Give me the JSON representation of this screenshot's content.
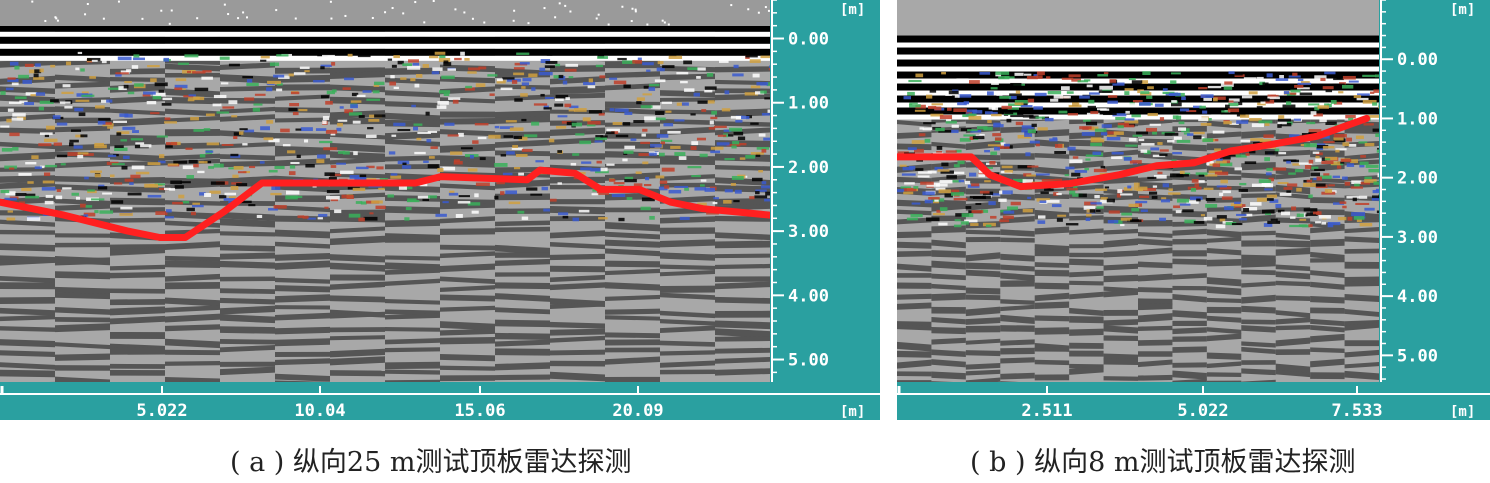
{
  "chart_data": [
    {
      "type": "line",
      "caption": "( a ) 纵向25 m测试顶板雷达探测",
      "depth_unit": "[m]",
      "distance_unit": "[m]",
      "depth_ticks": [
        "0.00",
        "1.00",
        "2.00",
        "3.00",
        "4.00",
        "5.00"
      ],
      "distance_ticks": [
        "5.022",
        "10.04",
        "15.06",
        "20.09"
      ],
      "depth_range": [
        -0.6,
        5.35
      ],
      "distance_range": [
        0,
        24.1
      ],
      "colors": {
        "background": "#2aa0a0",
        "interface_line": "#ff2020",
        "gray_light": "#a8a8a8",
        "gray_dark": "#555555"
      },
      "series": [
        {
          "x": [
            0,
            2.0,
            4.0,
            5.0,
            5.8,
            7.0,
            8.2,
            9.5,
            13.0,
            13.8,
            16.5,
            16.9,
            18.0,
            18.8,
            20.0,
            21.0,
            22.0,
            24.1
          ],
          "y": [
            2.55,
            2.75,
            3.0,
            3.1,
            3.1,
            2.7,
            2.25,
            2.25,
            2.25,
            2.15,
            2.2,
            2.05,
            2.1,
            2.35,
            2.35,
            2.55,
            2.65,
            2.75
          ]
        }
      ]
    },
    {
      "type": "line",
      "caption": "( b ) 纵向8 m测试顶板雷达探测",
      "depth_unit": "[m]",
      "distance_unit": "[m]",
      "depth_ticks": [
        "0.00",
        "1.00",
        "2.00",
        "3.00",
        "4.00",
        "5.00"
      ],
      "distance_ticks": [
        "2.511",
        "5.022",
        "7.533"
      ],
      "depth_range": [
        -1.0,
        5.45
      ],
      "distance_range": [
        0,
        7.8
      ],
      "colors": {
        "background": "#2aa0a0",
        "interface_line": "#ff2020",
        "gray_light": "#a8a8a8",
        "gray_dark": "#555555"
      },
      "series": [
        {
          "x": [
            0,
            1.2,
            1.5,
            2.0,
            2.8,
            3.6,
            4.2,
            4.8,
            5.4,
            6.0,
            6.8,
            7.6
          ],
          "y": [
            1.65,
            1.65,
            1.95,
            2.15,
            2.1,
            1.95,
            1.8,
            1.75,
            1.55,
            1.45,
            1.3,
            1.0
          ]
        }
      ]
    }
  ]
}
